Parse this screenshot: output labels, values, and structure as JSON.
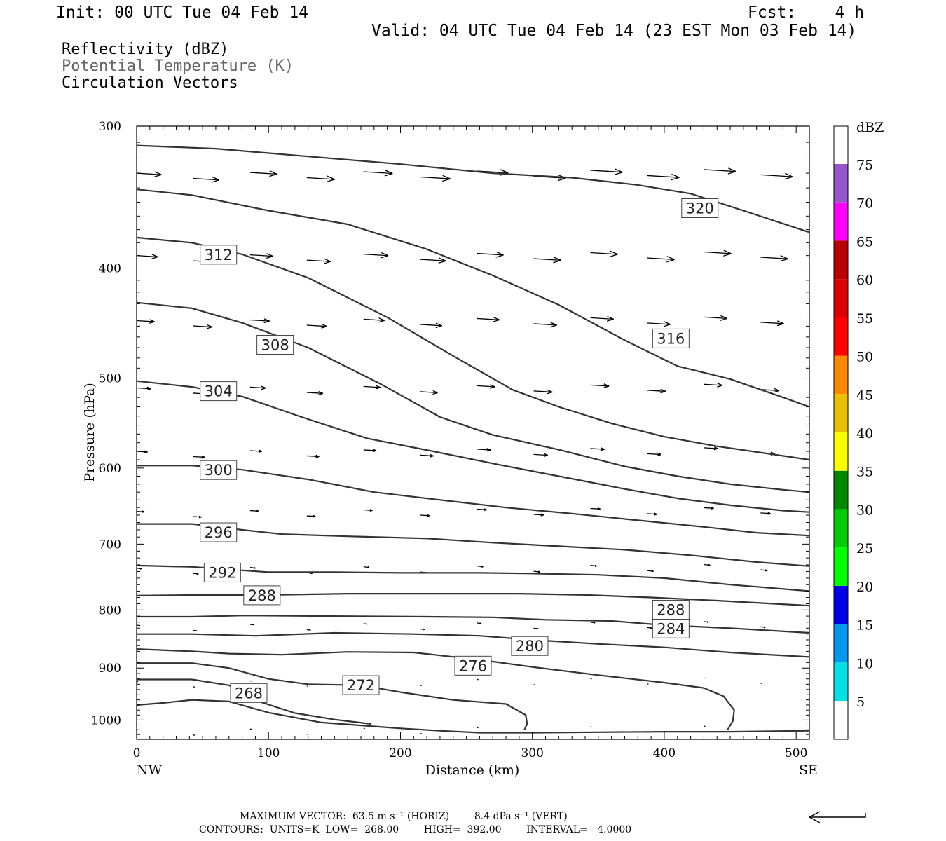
{
  "header": {
    "init": "Init: 00 UTC Tue 04 Feb 14",
    "fcst": "Fcst:    4 h",
    "valid": "Valid: 04 UTC Tue 04 Feb 14 (23 EST Mon 03 Feb 14)",
    "field1": "Reflectivity (dBZ)",
    "field2": "Potential Temperature (K)",
    "field3": "Circulation Vectors"
  },
  "footer": {
    "maxvec": "MAXIMUM VECTOR:  63.5 m s⁻¹ (HORIZ)        8.4 dPa s⁻¹ (VERT)",
    "contours": "CONTOURS:  UNITS=K  LOW=  268.00        HIGH=  392.00        INTERVAL=   4.0000"
  },
  "colorbar": {
    "title": "dBZ",
    "labels": [
      "5",
      "10",
      "15",
      "20",
      "25",
      "30",
      "35",
      "40",
      "45",
      "50",
      "55",
      "60",
      "65",
      "70",
      "75"
    ],
    "colors": [
      "#00e0e8",
      "#0099ee",
      "#0000e8",
      "#00ff00",
      "#00cc00",
      "#008800",
      "#ffff00",
      "#e8c000",
      "#ff8800",
      "#ff0000",
      "#dd0000",
      "#bb0000",
      "#ff00ff",
      "#9955cc"
    ]
  },
  "chart_data": {
    "type": "line",
    "title": "",
    "xlabel": "Distance (km)",
    "ylabel": "Pressure (hPa)",
    "xlim": [
      0,
      510
    ],
    "ylim": [
      1040,
      300
    ],
    "y_scale": "log",
    "xticks": [
      0,
      100,
      200,
      300,
      400,
      500
    ],
    "yticks": [
      300,
      400,
      500,
      600,
      700,
      800,
      900,
      1000
    ],
    "x_end_labels": [
      "NW",
      "SE"
    ],
    "vector_color": "#000000",
    "contour_color": "#333333",
    "contours": [
      {
        "name": "268",
        "label_at": [
          85,
          946
        ],
        "points": [
          [
            0,
            970
          ],
          [
            20,
            966
          ],
          [
            42,
            960
          ],
          [
            70,
            963
          ],
          [
            100,
            985
          ],
          [
            140,
            1005
          ],
          [
            180,
            1013
          ],
          [
            200,
            1017
          ],
          [
            230,
            1022
          ],
          [
            260,
            1026
          ],
          [
            300,
            1026
          ],
          [
            350,
            1025
          ],
          [
            400,
            1024
          ],
          [
            450,
            1024
          ],
          [
            510,
            1022
          ]
        ]
      },
      {
        "name": "272",
        "label_at": [
          170,
          931
        ],
        "points": [
          [
            0,
            921
          ],
          [
            42,
            921
          ],
          [
            70,
            932
          ],
          [
            95,
            965
          ],
          [
            120,
            986
          ],
          [
            150,
            999
          ],
          [
            178,
            1008
          ]
        ]
      },
      {
        "name": "276",
        "label_at": [
          255,
          895
        ],
        "points": [
          [
            0,
            891
          ],
          [
            42,
            891
          ],
          [
            70,
            900
          ],
          [
            100,
            920
          ],
          [
            130,
            930
          ],
          [
            170,
            932
          ],
          [
            200,
            945
          ],
          [
            240,
            960
          ],
          [
            280,
            968
          ],
          [
            295,
            990
          ],
          [
            296,
            1008
          ],
          [
            294,
            1020
          ]
        ]
      },
      {
        "name": "280",
        "label_at": [
          298,
          860
        ],
        "points": [
          [
            0,
            866
          ],
          [
            42,
            870
          ],
          [
            70,
            874
          ],
          [
            110,
            876
          ],
          [
            160,
            871
          ],
          [
            210,
            872
          ],
          [
            260,
            885
          ],
          [
            300,
            898
          ],
          [
            350,
            913
          ],
          [
            400,
            927
          ],
          [
            430,
            937
          ],
          [
            445,
            953
          ],
          [
            453,
            980
          ],
          [
            452,
            1002
          ],
          [
            448,
            1020
          ]
        ]
      },
      {
        "name": "284",
        "label_at": [
          405,
          830
        ],
        "points": [
          [
            0,
            840
          ],
          [
            42,
            840
          ],
          [
            90,
            843
          ],
          [
            150,
            838
          ],
          [
            210,
            840
          ],
          [
            260,
            843
          ],
          [
            300,
            850
          ],
          [
            350,
            857
          ],
          [
            400,
            863
          ],
          [
            450,
            872
          ],
          [
            510,
            880
          ]
        ]
      },
      {
        "name": "288",
        "label_at": [
          405,
          799
        ],
        "points": [
          [
            0,
            811
          ],
          [
            42,
            811
          ],
          [
            82,
            809
          ],
          [
            150,
            810
          ],
          [
            220,
            811
          ],
          [
            270,
            812
          ],
          [
            310,
            816
          ],
          [
            360,
            818
          ],
          [
            400,
            825
          ],
          [
            450,
            830
          ],
          [
            510,
            838
          ]
        ]
      },
      {
        "name": "288",
        "label_at": [
          95,
          776
        ],
        "points": [
          [
            0,
            777
          ],
          [
            50,
            776
          ],
          [
            100,
            776
          ],
          [
            160,
            774
          ],
          [
            220,
            774
          ],
          [
            290,
            774
          ],
          [
            340,
            776
          ],
          [
            390,
            780
          ],
          [
            440,
            785
          ],
          [
            510,
            793
          ]
        ]
      },
      {
        "name": "292",
        "label_at": [
          65,
          741
        ],
        "points": [
          [
            0,
            731
          ],
          [
            42,
            733
          ],
          [
            100,
            741
          ],
          [
            150,
            741
          ],
          [
            200,
            742
          ],
          [
            260,
            742
          ],
          [
            300,
            743
          ],
          [
            350,
            745
          ],
          [
            400,
            750
          ],
          [
            450,
            760
          ],
          [
            510,
            770
          ]
        ]
      },
      {
        "name": "296",
        "label_at": [
          62,
          683
        ],
        "points": [
          [
            0,
            672
          ],
          [
            42,
            672
          ],
          [
            80,
            680
          ],
          [
            110,
            686
          ],
          [
            160,
            689
          ],
          [
            220,
            692
          ],
          [
            270,
            698
          ],
          [
            320,
            703
          ],
          [
            370,
            708
          ],
          [
            420,
            716
          ],
          [
            470,
            726
          ],
          [
            510,
            732
          ]
        ]
      },
      {
        "name": "300",
        "label_at": [
          62,
          602
        ],
        "points": [
          [
            0,
            597
          ],
          [
            42,
            597
          ],
          [
            80,
            602
          ],
          [
            130,
            614
          ],
          [
            180,
            630
          ],
          [
            230,
            640
          ],
          [
            280,
            650
          ],
          [
            330,
            658
          ],
          [
            380,
            667
          ],
          [
            430,
            676
          ],
          [
            470,
            684
          ],
          [
            510,
            688
          ]
        ]
      },
      {
        "name": "304",
        "label_at": [
          62,
          513
        ],
        "points": [
          [
            0,
            503
          ],
          [
            42,
            509
          ],
          [
            80,
            519
          ],
          [
            125,
            541
          ],
          [
            175,
            565
          ],
          [
            225,
            580
          ],
          [
            275,
            596
          ],
          [
            320,
            610
          ],
          [
            370,
            626
          ],
          [
            410,
            638
          ],
          [
            450,
            647
          ],
          [
            490,
            654
          ],
          [
            510,
            656
          ]
        ]
      },
      {
        "name": "308",
        "label_at": [
          105,
          467
        ],
        "points": [
          [
            0,
            429
          ],
          [
            42,
            434
          ],
          [
            80,
            447
          ],
          [
            130,
            470
          ],
          [
            185,
            506
          ],
          [
            230,
            541
          ],
          [
            270,
            561
          ],
          [
            320,
            578
          ],
          [
            370,
            598
          ],
          [
            410,
            610
          ],
          [
            450,
            620
          ],
          [
            490,
            627
          ],
          [
            510,
            630
          ]
        ]
      },
      {
        "name": "312",
        "label_at": [
          62,
          389
        ],
        "points": [
          [
            0,
            376
          ],
          [
            42,
            380
          ],
          [
            80,
            389
          ],
          [
            130,
            408
          ],
          [
            190,
            442
          ],
          [
            240,
            478
          ],
          [
            285,
            512
          ],
          [
            320,
            530
          ],
          [
            360,
            548
          ],
          [
            400,
            563
          ],
          [
            440,
            574
          ],
          [
            480,
            583
          ],
          [
            510,
            590
          ]
        ]
      },
      {
        "name": "316",
        "label_at": [
          405,
          461
        ],
        "points": [
          [
            0,
            341
          ],
          [
            42,
            345
          ],
          [
            100,
            356
          ],
          [
            160,
            366
          ],
          [
            220,
            385
          ],
          [
            270,
            406
          ],
          [
            320,
            431
          ],
          [
            370,
            463
          ],
          [
            410,
            488
          ],
          [
            450,
            501
          ],
          [
            490,
            520
          ],
          [
            510,
            530
          ]
        ]
      },
      {
        "name": "320",
        "label_at": [
          427,
          354
        ],
        "points": [
          [
            0,
            312
          ],
          [
            60,
            314
          ],
          [
            130,
            319
          ],
          [
            200,
            324
          ],
          [
            270,
            330
          ],
          [
            330,
            333
          ],
          [
            380,
            338
          ],
          [
            420,
            344
          ],
          [
            460,
            356
          ],
          [
            510,
            372
          ]
        ]
      }
    ]
  }
}
